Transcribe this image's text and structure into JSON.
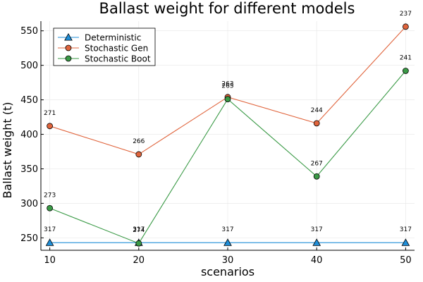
{
  "chart_data": {
    "type": "line",
    "title": "Ballast weight for different models",
    "xlabel": "scenarios",
    "ylabel": "Ballast weight (t)",
    "x": [
      10,
      20,
      30,
      40,
      50
    ],
    "xlim": [
      9,
      51
    ],
    "ylim": [
      232,
      564
    ],
    "xticks": [
      "10",
      "20",
      "30",
      "40",
      "50"
    ],
    "yticks": [
      "250",
      "300",
      "350",
      "400",
      "450",
      "500",
      "550"
    ],
    "ytick_values": [
      250,
      300,
      350,
      400,
      450,
      500,
      550
    ],
    "grid": true,
    "legend_position": "top-left",
    "series": [
      {
        "name": "Deterministic",
        "marker": "triangle",
        "color": "#1f8ed8",
        "values": [
          243,
          243,
          243,
          243,
          243
        ],
        "annotations": [
          "317",
          "317",
          "317",
          "317",
          "317"
        ]
      },
      {
        "name": "Stochastic Gen",
        "marker": "circle",
        "color": "#e0643c",
        "values": [
          412,
          371,
          454,
          416,
          556
        ],
        "annotations": [
          "271",
          "266",
          "263",
          "244",
          "237"
        ]
      },
      {
        "name": "Stochastic Boot",
        "marker": "circle",
        "color": "#3a9a46",
        "values": [
          293,
          242,
          451,
          339,
          492
        ],
        "annotations": [
          "273",
          "274",
          "265",
          "267",
          "241"
        ]
      }
    ]
  }
}
